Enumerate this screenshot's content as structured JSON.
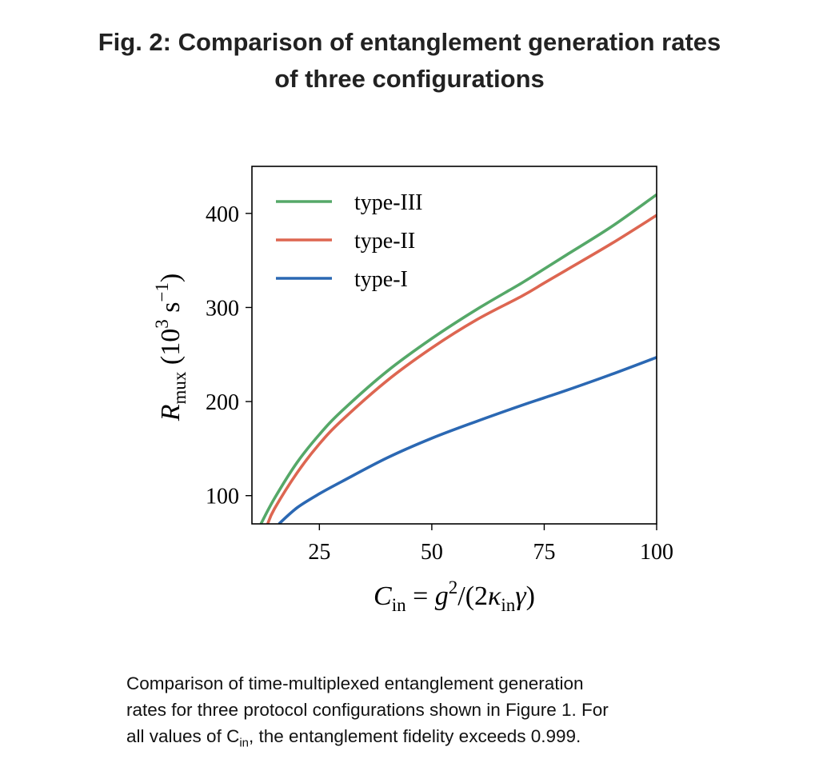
{
  "figure": {
    "title_line1": "Fig. 2: Comparison of entanglement generation rates",
    "title_line2": "of three configurations"
  },
  "caption": {
    "part1": "Comparison of time-multiplexed entanglement generation",
    "part2": "rates for three protocol configurations shown in Figure 1. For",
    "part3": "all values of C",
    "sub": "in",
    "part4": ", the entanglement fidelity exceeds 0.999."
  },
  "chart_data": {
    "type": "line",
    "xlabel": "C_in = g^2/(2κ_in γ)",
    "ylabel": "R_mux (10^3 s^-1)",
    "xlim": [
      10,
      100
    ],
    "ylim": [
      70,
      450
    ],
    "xticks": [
      25,
      50,
      75,
      100
    ],
    "yticks": [
      100,
      200,
      300,
      400
    ],
    "grid": false,
    "legend_position": "top-left",
    "colors": {
      "type-III": "#55a868",
      "type-II": "#dd6651",
      "type-I": "#2b68b3"
    },
    "series": [
      {
        "name": "type-III",
        "x": [
          12,
          15,
          20,
          25,
          30,
          40,
          50,
          60,
          70,
          75,
          80,
          90,
          100
        ],
        "values": [
          70,
          97,
          135,
          165,
          190,
          232,
          267,
          298,
          326,
          341,
          356,
          386,
          420
        ]
      },
      {
        "name": "type-II",
        "x": [
          13.5,
          15,
          20,
          25,
          30,
          40,
          50,
          60,
          70,
          75,
          80,
          90,
          100
        ],
        "values": [
          70,
          86,
          124,
          155,
          180,
          222,
          257,
          287,
          312,
          326,
          340,
          368,
          398
        ]
      },
      {
        "name": "type-I",
        "x": [
          16,
          20,
          25,
          30,
          40,
          50,
          60,
          70,
          75,
          80,
          90,
          100
        ],
        "values": [
          70,
          87,
          102,
          115,
          140,
          161,
          179,
          196,
          204,
          212,
          229,
          247
        ]
      }
    ]
  }
}
